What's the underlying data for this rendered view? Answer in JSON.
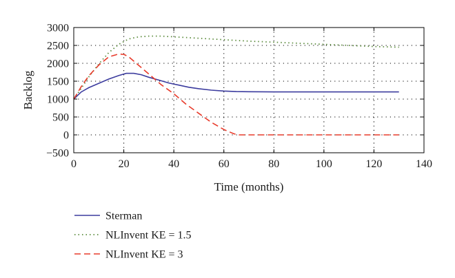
{
  "chart_data": {
    "type": "line",
    "title": "",
    "xlabel": "Time (months)",
    "ylabel": "Backlog",
    "xlim": [
      0,
      140
    ],
    "ylim": [
      -500,
      3000
    ],
    "xticks": [
      0,
      20,
      40,
      60,
      80,
      100,
      120,
      140
    ],
    "yticks": [
      -500,
      0,
      500,
      1000,
      1500,
      2000,
      2500,
      3000
    ],
    "xtick_labels": [
      "0",
      "20",
      "40",
      "60",
      "80",
      "100",
      "120",
      "140"
    ],
    "ytick_labels": [
      "−500",
      "0",
      "500",
      "1000",
      "1500",
      "2000",
      "2500",
      "3000"
    ],
    "grid": true,
    "legend_position": "bottom-left, below plot",
    "series": [
      {
        "name": "Sterman",
        "color": "#3b3b9e",
        "style": "solid",
        "x": [
          0,
          3,
          6,
          10,
          14,
          18,
          21,
          24,
          27,
          30,
          34,
          38,
          42,
          46,
          50,
          55,
          60,
          65,
          70,
          80,
          90,
          100,
          110,
          120,
          130
        ],
        "y": [
          1000,
          1200,
          1320,
          1440,
          1560,
          1660,
          1720,
          1720,
          1680,
          1610,
          1530,
          1450,
          1390,
          1330,
          1290,
          1250,
          1225,
          1210,
          1205,
          1200,
          1200,
          1200,
          1200,
          1200,
          1200
        ]
      },
      {
        "name": "NLInvent KE = 1.5",
        "color": "#5a8a3a",
        "style": "dotted",
        "x": [
          0,
          3,
          6,
          10,
          14,
          18,
          22,
          26,
          30,
          35,
          40,
          50,
          60,
          70,
          80,
          90,
          100,
          110,
          120,
          130
        ],
        "y": [
          1000,
          1300,
          1620,
          1980,
          2300,
          2530,
          2680,
          2740,
          2760,
          2760,
          2740,
          2700,
          2660,
          2620,
          2590,
          2560,
          2530,
          2500,
          2470,
          2450
        ]
      },
      {
        "name": "NLInvent KE = 3",
        "color": "#e83a2a",
        "style": "dashed",
        "x": [
          0,
          3,
          6,
          10,
          14,
          18,
          20,
          22,
          25,
          30,
          35,
          40,
          45,
          50,
          55,
          60,
          64,
          66,
          70,
          80,
          90,
          100,
          110,
          120,
          130
        ],
        "y": [
          1000,
          1350,
          1650,
          1950,
          2180,
          2260,
          2250,
          2180,
          2000,
          1700,
          1400,
          1150,
          850,
          600,
          350,
          150,
          30,
          0,
          0,
          0,
          0,
          0,
          0,
          0,
          0
        ]
      }
    ]
  }
}
